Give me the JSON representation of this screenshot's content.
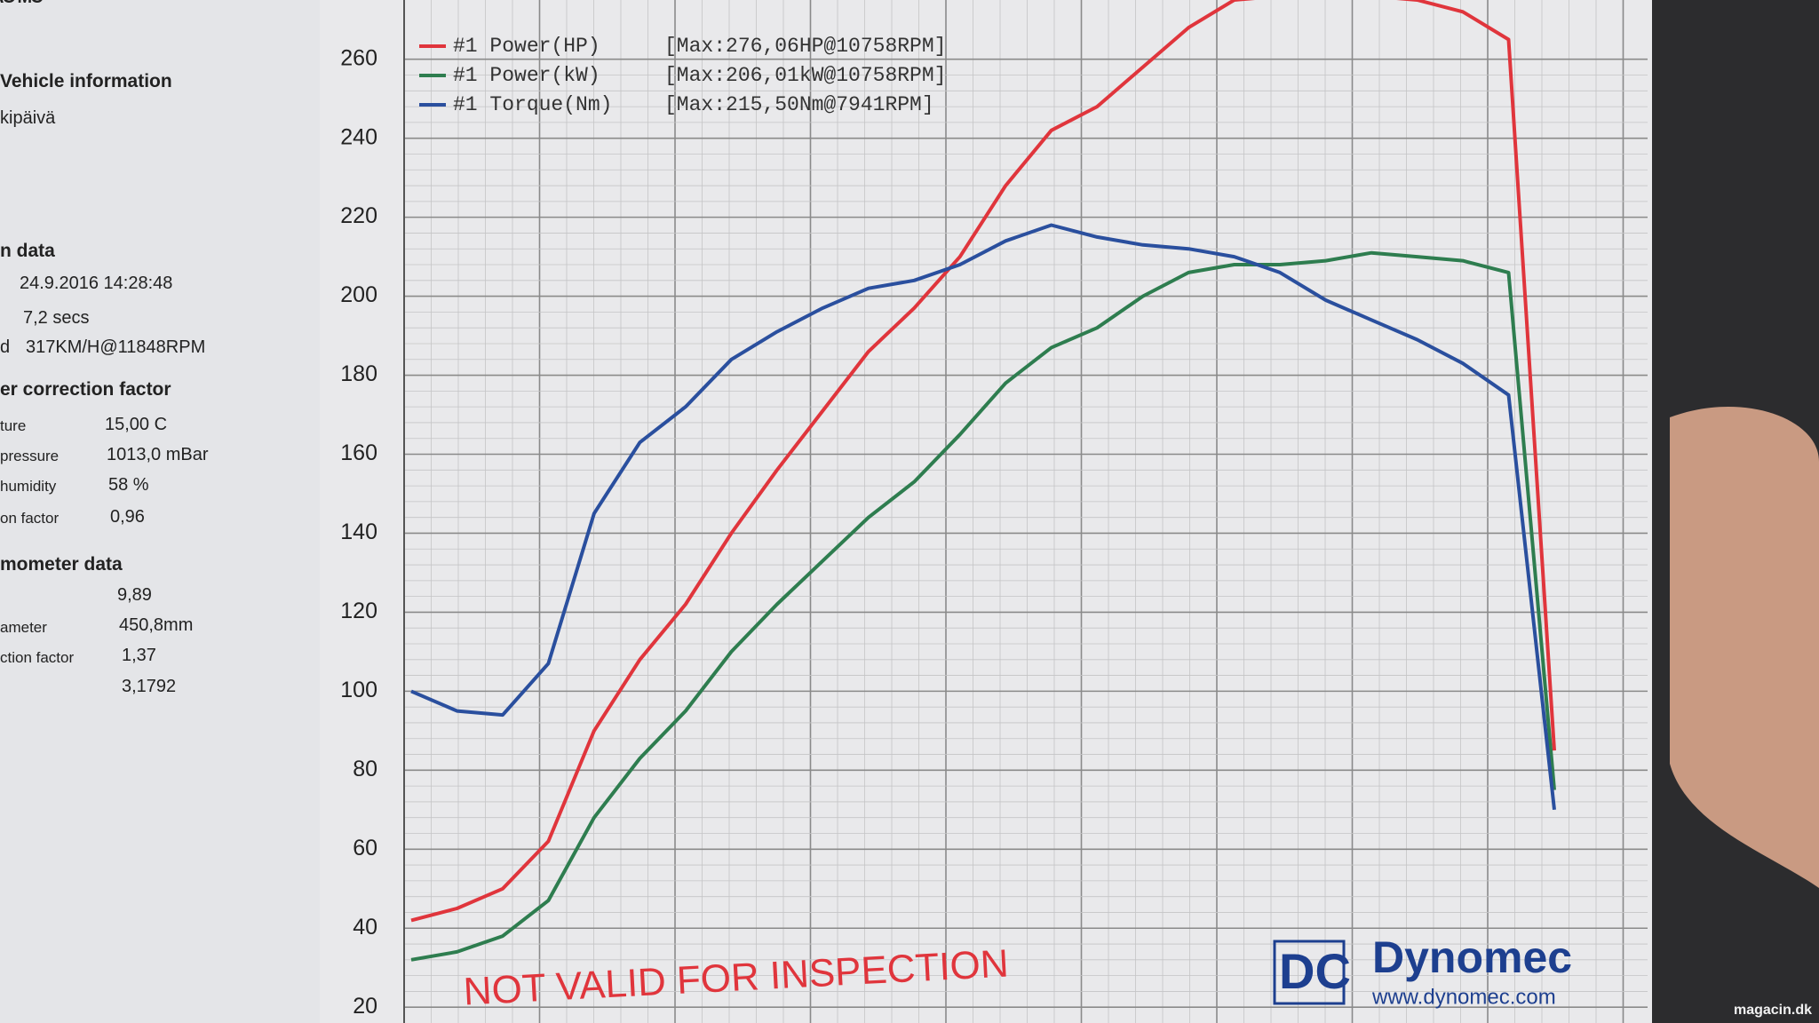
{
  "logo": "AO MC",
  "sidebar": {
    "heading_vehicle": "Vehicle information",
    "vehicle_line": "kipäivä",
    "heading_run": "n data",
    "date": "24.9.2016 14:28:48",
    "duration": "7,2 secs",
    "speed_label": "d",
    "speed": "317KM/H@11848RPM",
    "heading_correction": "er correction factor",
    "rows": [
      {
        "label": "ture",
        "value": "15,00 C"
      },
      {
        "label": "pressure",
        "value": "1013,0 mBar"
      },
      {
        "label": "humidity",
        "value": "58 %"
      },
      {
        "label": "on factor",
        "value": "0,96"
      }
    ],
    "heading_dyno": "mometer data",
    "dyno_rows": [
      {
        "value": "9,89"
      },
      {
        "label": "ameter",
        "value": "450,8mm"
      },
      {
        "label": "ction factor",
        "value": "1,37"
      },
      {
        "value": "3,1792"
      }
    ]
  },
  "stamp": "NOT VALID FOR INSPECTION",
  "brand": {
    "mark": "DC",
    "name": "Dynomec",
    "url": "www.dynomec.com"
  },
  "watermark": "magacin.dk",
  "chart_data": {
    "type": "line",
    "categories": [
      null,
      null,
      null,
      null,
      null,
      null,
      null,
      null,
      null,
      null,
      null,
      null,
      null,
      null,
      null,
      null,
      null,
      null,
      null,
      null,
      null,
      null,
      null,
      null,
      null,
      null
    ],
    "series": [
      {
        "name": "#1 Power(HP)",
        "color": "#e0353c",
        "values": [
          42,
          45,
          50,
          62,
          90,
          108,
          122,
          140,
          156,
          171,
          186,
          197,
          210,
          228,
          242,
          248,
          258,
          268,
          275,
          276,
          276,
          276,
          275,
          272,
          265,
          85
        ]
      },
      {
        "name": "#1 Power(kW)",
        "color": "#2e7d4f",
        "values": [
          32,
          34,
          38,
          47,
          68,
          83,
          95,
          110,
          122,
          133,
          144,
          153,
          165,
          178,
          187,
          192,
          200,
          206,
          208,
          208,
          209,
          211,
          210,
          209,
          206,
          75
        ]
      },
      {
        "name": "#1 Torque(Nm)",
        "color": "#2a4f9e",
        "values": [
          100,
          95,
          94,
          107,
          145,
          163,
          172,
          184,
          191,
          197,
          202,
          204,
          208,
          214,
          218,
          215,
          213,
          212,
          210,
          206,
          199,
          194,
          189,
          183,
          175,
          70
        ]
      }
    ],
    "legend_notes": [
      "[Max:276,06HP@10758RPM]",
      "[Max:206,01kW@10758RPM]",
      "[Max:215,50Nm@7941RPM]"
    ],
    "ylim": [
      16,
      275
    ],
    "yticks": [
      20,
      40,
      60,
      80,
      100,
      120,
      140,
      160,
      180,
      200,
      220,
      240,
      260
    ],
    "grid": true
  }
}
